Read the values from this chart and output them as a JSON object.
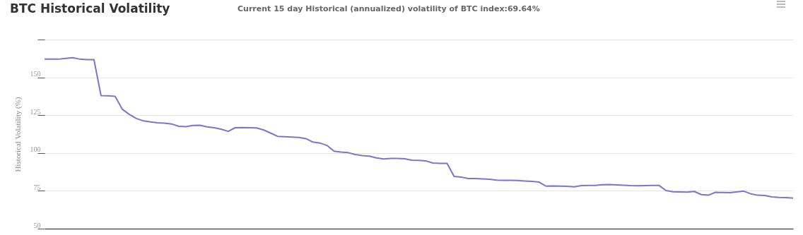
{
  "chart_data": {
    "type": "line",
    "title": "BTC Historical Volatility",
    "subtitle": "Current 15 day Historical (annualized) volatility of BTC index:69.64%",
    "ylabel": "Historical Volatility (%)",
    "categories": [
      null,
      null,
      null,
      null,
      null,
      null,
      null,
      null,
      null,
      null,
      null,
      null,
      null,
      null,
      null,
      null,
      null,
      null,
      null,
      null,
      null,
      null,
      null,
      null,
      null,
      null,
      null,
      null,
      null,
      null,
      null,
      null,
      null,
      null,
      null,
      null,
      null,
      null,
      null,
      null,
      null,
      null,
      null,
      null,
      null,
      null,
      null,
      null,
      null,
      null,
      null,
      null,
      null,
      null,
      null,
      null,
      null,
      null,
      null,
      null,
      null,
      null,
      null,
      null,
      null,
      null,
      null,
      null,
      null,
      null,
      null,
      null,
      null,
      null,
      null,
      null,
      null,
      null,
      null,
      null,
      null,
      null,
      null,
      null,
      null,
      null,
      null,
      null,
      null,
      null,
      null,
      null,
      null,
      null,
      null,
      null,
      null,
      null,
      null,
      null,
      null,
      null,
      null,
      null,
      null,
      null,
      null
    ],
    "series": [
      {
        "color": "#7b74d0",
        "values": [
          162,
          162,
          162,
          162.5,
          163,
          162,
          161.7,
          161.7,
          137.9,
          137.8,
          137.5,
          129,
          125.5,
          122.8,
          121.2,
          120.5,
          120,
          119.7,
          119.2,
          117.6,
          117.4,
          118.2,
          118.3,
          117.3,
          116.7,
          115.8,
          114.3,
          116.7,
          116.8,
          116.7,
          116.6,
          115.3,
          113.2,
          111,
          110.7,
          110.5,
          110.3,
          109.5,
          107.2,
          106.6,
          105,
          101.2,
          100.6,
          100.2,
          99,
          98.3,
          97.9,
          96.8,
          96.1,
          96.4,
          96.4,
          96.2,
          95.2,
          95.1,
          94.8,
          93.4,
          93.2,
          93.1,
          84.5,
          84.1,
          83.1,
          83.1,
          82.9,
          82.7,
          82.1,
          82,
          81.9,
          81.8,
          81.5,
          81.2,
          80.8,
          78.1,
          78.2,
          78.1,
          78,
          77.6,
          78.5,
          78.6,
          78.6,
          79,
          79.1,
          78.9,
          78.7,
          78.4,
          78.3,
          78.5,
          78.6,
          78.6,
          75.2,
          74.4,
          74.2,
          74.1,
          74.6,
          72.5,
          72.1,
          74,
          73.9,
          73.8,
          74.3,
          74.8,
          73,
          72.1,
          71.9,
          71,
          70.6,
          70.5,
          70.2
        ]
      }
    ],
    "ylim": [
      50,
      175
    ],
    "yticks": [
      50,
      75,
      100,
      125,
      150,
      {
        "value": 175,
        "label": null
      }
    ],
    "grid": "y",
    "legend": false,
    "tick_labels": "y",
    "marker": "none",
    "line_style": "solid"
  }
}
